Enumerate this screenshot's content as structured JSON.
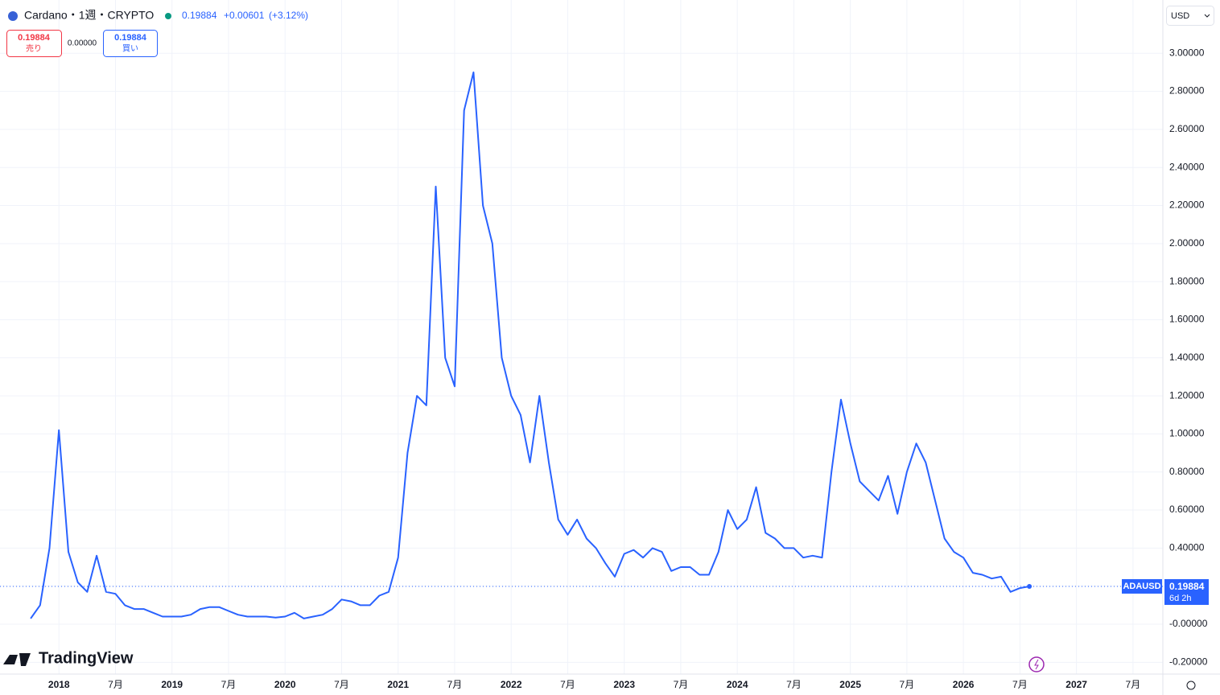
{
  "header": {
    "symbol": "Cardano・1週・CRYPTO",
    "price": "0.19884",
    "change": "+0.00601",
    "change_pct": "(+3.12%)"
  },
  "trade": {
    "sell_price": "0.19884",
    "sell_label": "売り",
    "spread": "0.00000",
    "buy_price": "0.19884",
    "buy_label": "買い"
  },
  "currency": "USD",
  "logo": "TradingView",
  "chart_data": {
    "type": "line",
    "x": [
      "2017-10",
      "2017-11",
      "2017-12",
      "2018-01",
      "2018-02",
      "2018-03",
      "2018-04",
      "2018-05",
      "2018-06",
      "2018-07",
      "2018-08",
      "2018-09",
      "2018-10",
      "2018-11",
      "2018-12",
      "2019-01",
      "2019-02",
      "2019-03",
      "2019-04",
      "2019-05",
      "2019-06",
      "2019-07",
      "2019-08",
      "2019-09",
      "2019-10",
      "2019-11",
      "2019-12",
      "2020-01",
      "2020-02",
      "2020-03",
      "2020-04",
      "2020-05",
      "2020-06",
      "2020-07",
      "2020-08",
      "2020-09",
      "2020-10",
      "2020-11",
      "2020-12",
      "2021-01",
      "2021-02",
      "2021-03",
      "2021-04",
      "2021-05",
      "2021-06",
      "2021-07",
      "2021-08",
      "2021-09",
      "2021-10",
      "2021-11",
      "2021-12",
      "2022-01",
      "2022-02",
      "2022-03",
      "2022-04",
      "2022-05",
      "2022-06",
      "2022-07",
      "2022-08",
      "2022-09",
      "2022-10",
      "2022-11",
      "2022-12",
      "2023-01",
      "2023-02",
      "2023-03",
      "2023-04",
      "2023-05",
      "2023-06",
      "2023-07",
      "2023-08",
      "2023-09",
      "2023-10",
      "2023-11",
      "2023-12",
      "2024-01",
      "2024-02",
      "2024-03",
      "2024-04",
      "2024-05",
      "2024-06",
      "2024-07",
      "2024-08",
      "2024-09",
      "2024-10",
      "2024-11",
      "2024-12",
      "2025-01",
      "2025-02",
      "2025-03",
      "2025-04",
      "2025-05",
      "2025-06",
      "2025-07",
      "2025-08",
      "2025-09",
      "2025-10",
      "2025-11",
      "2025-12",
      "2026-01",
      "2026-02",
      "2026-03",
      "2026-04",
      "2026-05",
      "2026-06",
      "2026-07",
      "2026-08"
    ],
    "series": [
      {
        "name": "ADAUSD",
        "color": "#2962ff",
        "values": [
          0.03,
          0.1,
          0.4,
          1.02,
          0.38,
          0.22,
          0.17,
          0.36,
          0.17,
          0.16,
          0.1,
          0.08,
          0.08,
          0.06,
          0.04,
          0.04,
          0.04,
          0.05,
          0.08,
          0.09,
          0.09,
          0.07,
          0.05,
          0.04,
          0.04,
          0.04,
          0.035,
          0.04,
          0.06,
          0.03,
          0.04,
          0.05,
          0.08,
          0.13,
          0.12,
          0.1,
          0.1,
          0.15,
          0.17,
          0.35,
          0.9,
          1.2,
          1.15,
          2.3,
          1.4,
          1.25,
          2.7,
          2.9,
          2.2,
          2.0,
          1.4,
          1.2,
          1.1,
          0.85,
          1.2,
          0.85,
          0.55,
          0.47,
          0.55,
          0.45,
          0.4,
          0.32,
          0.25,
          0.37,
          0.39,
          0.35,
          0.4,
          0.38,
          0.28,
          0.3,
          0.3,
          0.26,
          0.26,
          0.38,
          0.6,
          0.5,
          0.55,
          0.72,
          0.48,
          0.45,
          0.4,
          0.4,
          0.35,
          0.36,
          0.35,
          0.8,
          1.18,
          0.95,
          0.75,
          0.7,
          0.65,
          0.78,
          0.58,
          0.8,
          0.95,
          0.85,
          0.65,
          0.45,
          0.38,
          0.35,
          0.27,
          0.26,
          0.24,
          0.25,
          0.17,
          0.19,
          0.19884
        ]
      }
    ],
    "last_price": {
      "value": 0.19884,
      "countdown": "6d 2h"
    },
    "xlim": [
      "2017-07",
      "2027-10"
    ],
    "xticks": [
      {
        "value": "2018-01",
        "label": "2018"
      },
      {
        "value": "2018-07",
        "label": "7月"
      },
      {
        "value": "2019-01",
        "label": "2019"
      },
      {
        "value": "2019-07",
        "label": "7月"
      },
      {
        "value": "2020-01",
        "label": "2020"
      },
      {
        "value": "2020-07",
        "label": "7月"
      },
      {
        "value": "2021-01",
        "label": "2021"
      },
      {
        "value": "2021-07",
        "label": "7月"
      },
      {
        "value": "2022-01",
        "label": "2022"
      },
      {
        "value": "2022-07",
        "label": "7月"
      },
      {
        "value": "2023-01",
        "label": "2023"
      },
      {
        "value": "2023-07",
        "label": "7月"
      },
      {
        "value": "2024-01",
        "label": "2024"
      },
      {
        "value": "2024-07",
        "label": "7月"
      },
      {
        "value": "2025-01",
        "label": "2025"
      },
      {
        "value": "2025-07",
        "label": "7月"
      },
      {
        "value": "2026-01",
        "label": "2026"
      },
      {
        "value": "2026-07",
        "label": "7月"
      },
      {
        "value": "2027-01",
        "label": "2027"
      },
      {
        "value": "2027-07",
        "label": "7月"
      }
    ],
    "ylim": [
      -0.262,
      3.28
    ],
    "yticks": [
      {
        "value": -0.2,
        "label": "-0.20000"
      },
      {
        "value": 0,
        "label": "-0.00000"
      },
      {
        "value": 0.2,
        "label": "0.20000"
      },
      {
        "value": 0.4,
        "label": "0.40000"
      },
      {
        "value": 0.6,
        "label": "0.60000"
      },
      {
        "value": 0.8,
        "label": "0.80000"
      },
      {
        "value": 1.0,
        "label": "1.00000"
      },
      {
        "value": 1.2,
        "label": "1.20000"
      },
      {
        "value": 1.4,
        "label": "1.40000"
      },
      {
        "value": 1.6,
        "label": "1.60000"
      },
      {
        "value": 1.8,
        "label": "1.80000"
      },
      {
        "value": 2.0,
        "label": "2.00000"
      },
      {
        "value": 2.2,
        "label": "2.20000"
      },
      {
        "value": 2.4,
        "label": "2.40000"
      },
      {
        "value": 2.6,
        "label": "2.60000"
      },
      {
        "value": 2.8,
        "label": "2.80000"
      },
      {
        "value": 3.0,
        "label": "3.00000"
      }
    ],
    "grid": true
  }
}
